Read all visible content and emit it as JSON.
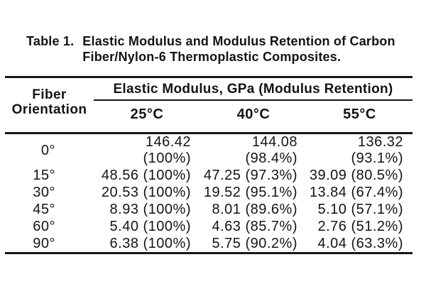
{
  "page": {
    "background": "#ffffff",
    "text_color": "#141414"
  },
  "title": {
    "prefix": "Table 1.",
    "line1": "Elastic Modulus and Modulus Retention of Carbon",
    "line2": "Fiber/Nylon-6 Thermoplastic Composites."
  },
  "table": {
    "col1_header": {
      "line1": "Fiber",
      "line2": "Orientation"
    },
    "span_header": "Elastic Modulus, GPa (Modulus Retention)",
    "temp_headers": [
      "25°C",
      "40°C",
      "55°C"
    ],
    "rows": [
      {
        "orientation": "0°",
        "values": [
          "146.42 (100%)",
          "144.08 (98.4%)",
          "136.32 (93.1%)"
        ]
      },
      {
        "orientation": "15°",
        "values": [
          "48.56 (100%)",
          "47.25 (97.3%)",
          "39.09 (80.5%)"
        ]
      },
      {
        "orientation": "30°",
        "values": [
          "20.53 (100%)",
          "19.52 (95.1%)",
          "13.84 (67.4%)"
        ]
      },
      {
        "orientation": "45°",
        "values": [
          "8.93 (100%)",
          "8.01 (89.6%)",
          "5.10 (57.1%)"
        ]
      },
      {
        "orientation": "60°",
        "values": [
          "5.40 (100%)",
          "4.63 (85.7%)",
          "2.76 (51.2%)"
        ]
      },
      {
        "orientation": "90°",
        "values": [
          "6.38 (100%)",
          "5.75 (90.2%)",
          "4.04 (63.3%)"
        ]
      }
    ]
  },
  "chart_data": {
    "type": "table",
    "title": "Table 1. Elastic Modulus and Modulus Retention of Carbon Fiber/Nylon-6 Thermoplastic Composites.",
    "columns": [
      "Fiber Orientation",
      "25°C",
      "40°C",
      "55°C"
    ],
    "units": "Elastic Modulus, GPa (Modulus Retention)",
    "categories": [
      "0°",
      "15°",
      "30°",
      "45°",
      "60°",
      "90°"
    ],
    "series": [
      {
        "name": "25°C",
        "modulus_gpa": [
          146.42,
          48.56,
          20.53,
          8.93,
          5.4,
          6.38
        ],
        "retention_pct": [
          100,
          100,
          100,
          100,
          100,
          100
        ]
      },
      {
        "name": "40°C",
        "modulus_gpa": [
          144.08,
          47.25,
          19.52,
          8.01,
          4.63,
          5.75
        ],
        "retention_pct": [
          98.4,
          97.3,
          95.1,
          89.6,
          85.7,
          90.2
        ]
      },
      {
        "name": "55°C",
        "modulus_gpa": [
          136.32,
          39.09,
          13.84,
          5.1,
          2.76,
          4.04
        ],
        "retention_pct": [
          93.1,
          80.5,
          67.4,
          57.1,
          51.2,
          63.3
        ]
      }
    ]
  }
}
